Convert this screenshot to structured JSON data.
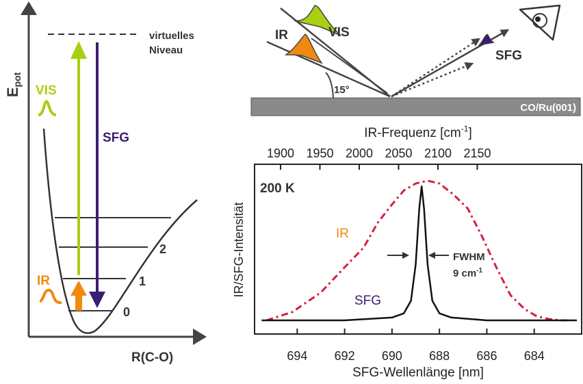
{
  "energy_diagram": {
    "y_axis_label": "E",
    "y_axis_subscript": "pot",
    "x_axis_label": "R(C-O)",
    "virtual_level_label_line1": "virtuelles",
    "virtual_level_label_line2": "Niveau",
    "vis_label": "VIS",
    "ir_label": "IR",
    "sfg_label": "SFG",
    "level_labels": [
      "0",
      "1",
      "2"
    ]
  },
  "beam_geometry": {
    "ir_label": "IR",
    "vis_label": "VIS",
    "sfg_label": "SFG",
    "angle_label": "15°",
    "surface_label": "CO/Ru(001)"
  },
  "chart_data": {
    "type": "line",
    "top_axis_label": "IR-Frequenz [cm",
    "top_axis_label_sup": "-1",
    "top_axis_label_end": "]",
    "top_ticks": [
      "1900",
      "1950",
      "2000",
      "2050",
      "2100",
      "2150"
    ],
    "xlabel": "SFG-Wellenlänge [nm]",
    "ylabel": "IR/SFG-Intensität",
    "x_ticks": [
      "694",
      "692",
      "690",
      "688",
      "686",
      "684"
    ],
    "xlim": [
      695.8,
      682.0
    ],
    "temperature_label": "200 K",
    "fwhm_label": "FWHM",
    "fwhm_value": "9 cm",
    "fwhm_value_sup": "-1",
    "series": [
      {
        "name": "IR",
        "style": "dash-dot",
        "color": "#d61f3d",
        "x": [
          695.3,
          694.2,
          693.0,
          692.0,
          691.2,
          690.6,
          690.0,
          689.5,
          689.0,
          688.5,
          688.0,
          687.4,
          686.8,
          686.2,
          685.6,
          685.0,
          684.4,
          683.9,
          683.4,
          682.9,
          682.4
        ],
        "y": [
          0.0,
          0.06,
          0.2,
          0.38,
          0.52,
          0.7,
          0.83,
          0.93,
          0.98,
          1.0,
          0.98,
          0.9,
          0.8,
          0.6,
          0.38,
          0.18,
          0.08,
          0.03,
          0.01,
          0.0,
          0.0
        ]
      },
      {
        "name": "SFG",
        "style": "solid",
        "color": "#111111",
        "x": [
          695.5,
          692.0,
          690.0,
          689.5,
          689.2,
          689.0,
          688.85,
          688.75,
          688.65,
          688.5,
          688.3,
          688.0,
          687.5,
          686.0,
          682.2
        ],
        "y": [
          0.0,
          0.0,
          0.02,
          0.05,
          0.14,
          0.4,
          0.8,
          0.96,
          0.8,
          0.4,
          0.14,
          0.05,
          0.02,
          0.0,
          0.0
        ]
      }
    ]
  },
  "colors": {
    "vis": "#a8cf12",
    "ir": "#f08a0f",
    "sfg": "#3b1d73",
    "ir_curve": "#d61f3d",
    "surface": "#8a8a8a"
  }
}
